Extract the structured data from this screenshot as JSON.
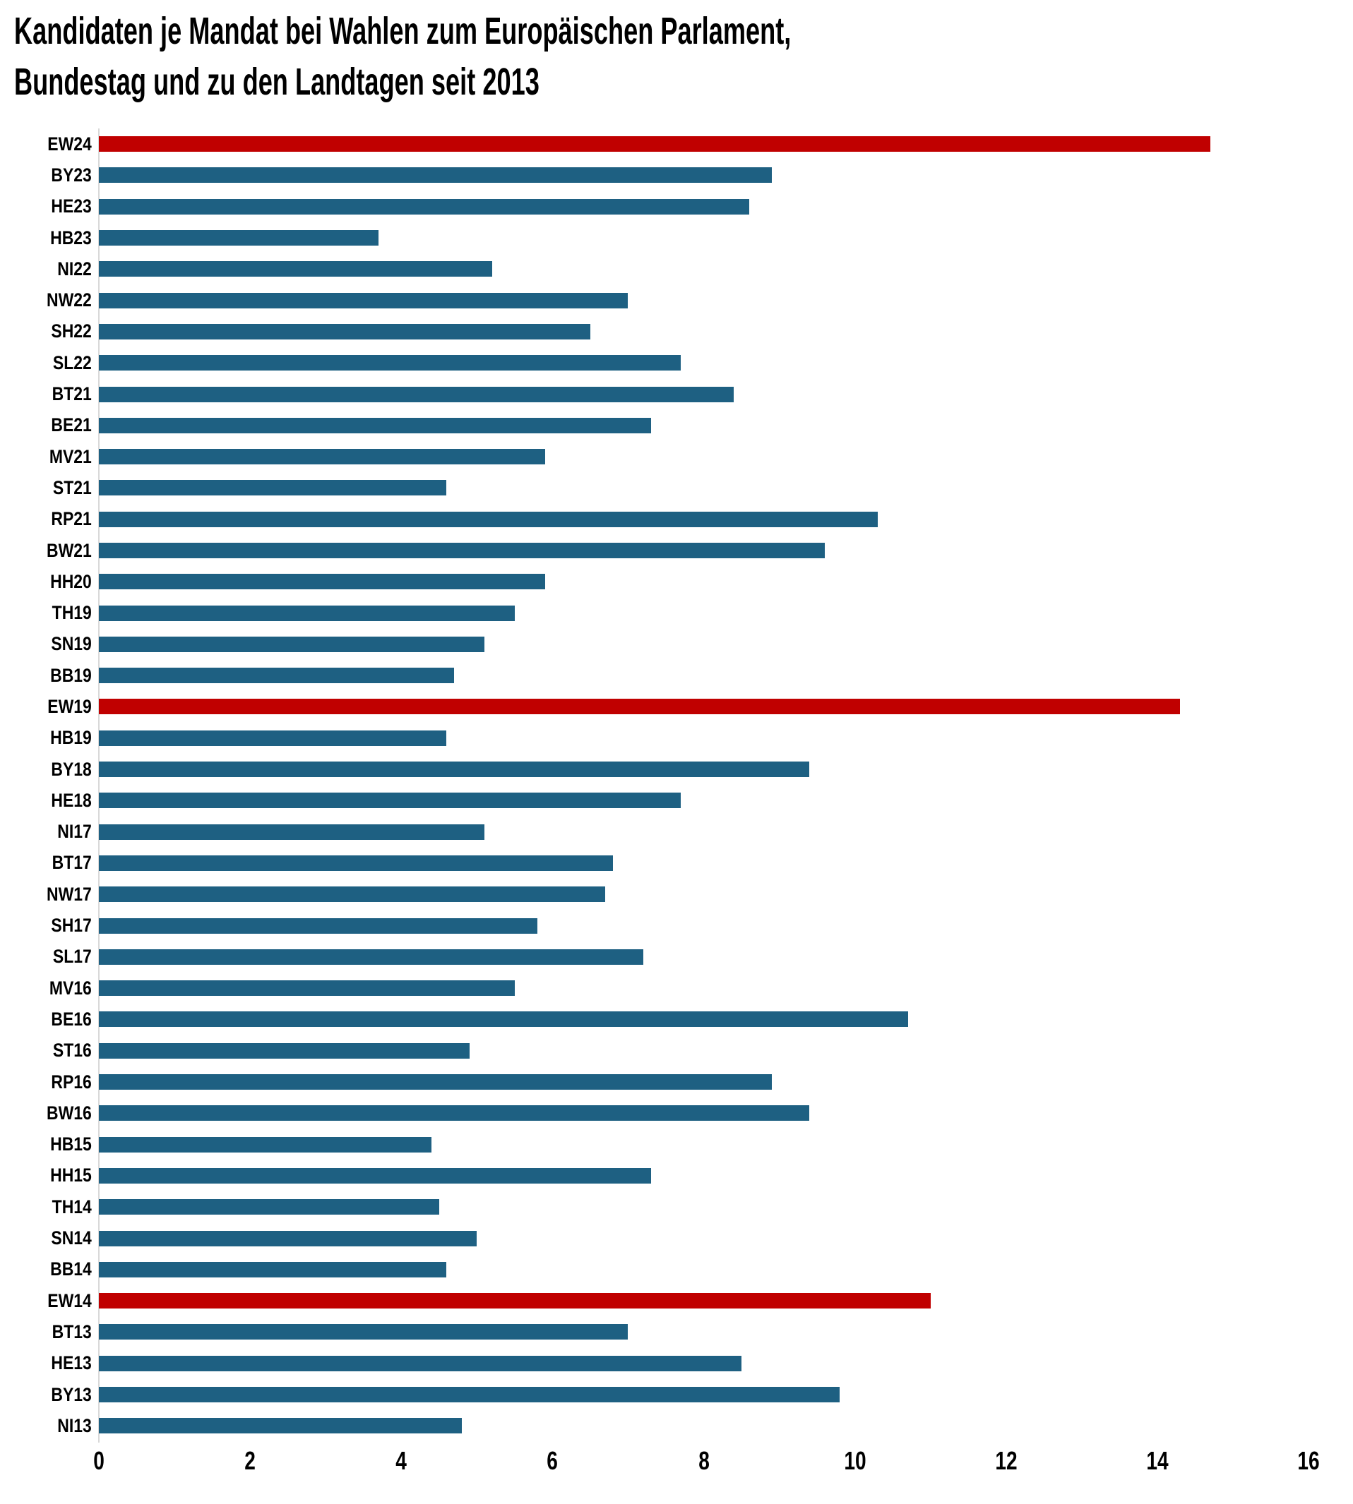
{
  "header": {
    "title_line1": "Kandidaten je Mandat bei Wahlen zum Europäischen Parlament,",
    "title_line2": "Bundestag und zu den Landtagen seit 2013"
  },
  "chart_data": {
    "type": "bar",
    "orientation": "horizontal",
    "title": "Kandidaten je Mandat bei Wahlen zum Europäischen Parlament, Bundestag und zu den Landtagen seit 2013",
    "xlabel": "",
    "ylabel": "",
    "xlim": [
      0,
      16
    ],
    "xticks": [
      0,
      2,
      4,
      6,
      8,
      10,
      12,
      14,
      16
    ],
    "grid": false,
    "legend": false,
    "colors": {
      "bar": "#1E6082",
      "highlight": "#C00000",
      "axis_line": "#D9D9D9",
      "text": "#000000",
      "background": "#FFFFFF"
    },
    "highlighted_categories": [
      "EW24",
      "EW19",
      "EW14"
    ],
    "categories": [
      "EW24",
      "BY23",
      "HE23",
      "HB23",
      "NI22",
      "NW22",
      "SH22",
      "SL22",
      "BT21",
      "BE21",
      "MV21",
      "ST21",
      "RP21",
      "BW21",
      "HH20",
      "TH19",
      "SN19",
      "BB19",
      "EW19",
      "HB19",
      "BY18",
      "HE18",
      "NI17",
      "BT17",
      "NW17",
      "SH17",
      "SL17",
      "MV16",
      "BE16",
      "ST16",
      "RP16",
      "BW16",
      "HB15",
      "HH15",
      "TH14",
      "SN14",
      "BB14",
      "EW14",
      "BT13",
      "HE13",
      "BY13",
      "NI13"
    ],
    "values": [
      14.7,
      8.9,
      8.6,
      3.7,
      5.2,
      7.0,
      6.5,
      7.7,
      8.4,
      7.3,
      5.9,
      4.6,
      10.3,
      9.6,
      5.9,
      5.5,
      5.1,
      4.7,
      14.3,
      4.6,
      9.4,
      7.7,
      5.1,
      6.8,
      6.7,
      5.8,
      7.2,
      5.5,
      10.7,
      4.9,
      8.9,
      9.4,
      4.4,
      7.3,
      4.5,
      5.0,
      4.6,
      11.0,
      7.0,
      8.5,
      9.8,
      4.8
    ]
  }
}
